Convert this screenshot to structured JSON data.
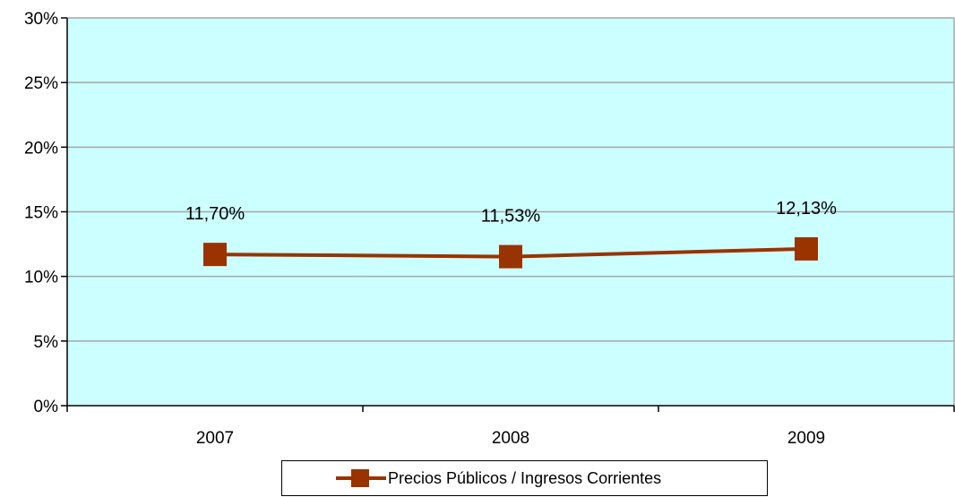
{
  "chart_data": {
    "type": "line",
    "categories": [
      "2007",
      "2008",
      "2009"
    ],
    "series": [
      {
        "name": "Precios Públicos / Ingresos Corrientes",
        "values": [
          11.7,
          11.53,
          12.13
        ],
        "labels": [
          "11,70%",
          "11,53%",
          "12,13%"
        ]
      }
    ],
    "ylim": [
      0,
      30
    ],
    "yticks": [
      0,
      5,
      10,
      15,
      20,
      25,
      30
    ],
    "ytick_labels": [
      "0%",
      "5%",
      "10%",
      "15%",
      "20%",
      "25%",
      "30%"
    ],
    "grid": true,
    "legend_position": "bottom",
    "title": "",
    "xlabel": "",
    "ylabel": ""
  },
  "colors": {
    "plot_background": "#ccffff",
    "series": "#993300",
    "gridline": "#a6a6a6"
  }
}
